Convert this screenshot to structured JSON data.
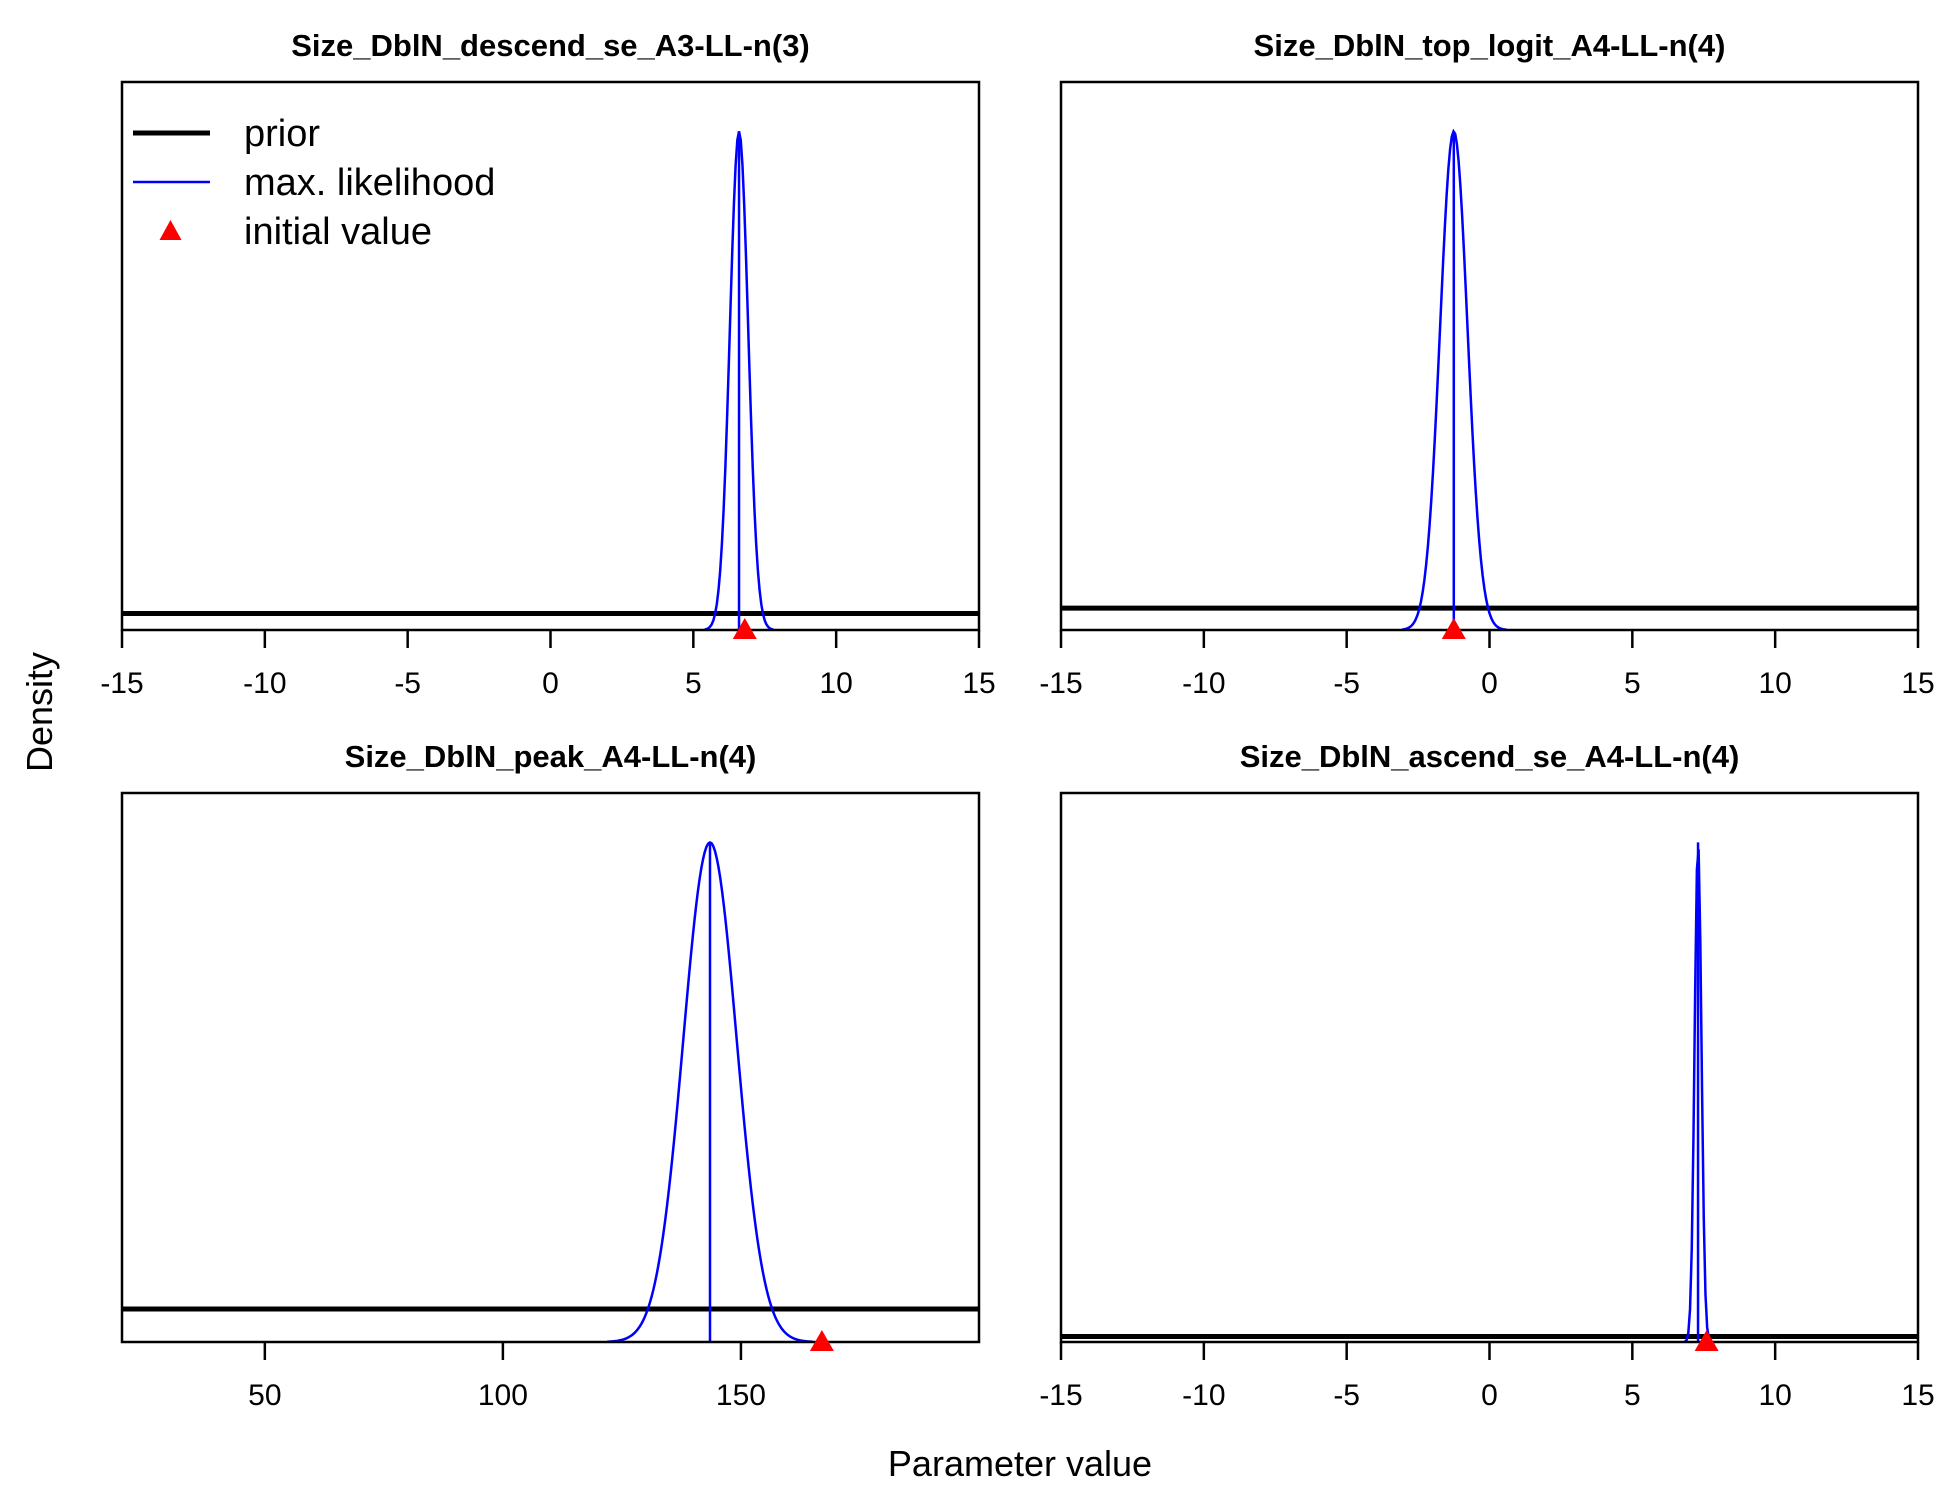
{
  "xlabel": "Parameter value",
  "ylabel": "Density",
  "legend": {
    "placement": "top-left",
    "items": [
      {
        "label": "prior",
        "color": "#000000",
        "style": "line-thick"
      },
      {
        "label": "max. likelihood",
        "color": "#0000ff",
        "style": "line-thin"
      },
      {
        "label": "initial value",
        "color": "#ff0000",
        "style": "triangle"
      }
    ]
  },
  "colors": {
    "prior": "#000000",
    "mle": "#0000ff",
    "initial": "#ff0000"
  },
  "chart_data": [
    {
      "type": "line",
      "title": "Size_DblN_descend_se_A3-LL-n(3)",
      "xlim": [
        -15,
        15
      ],
      "xticks": [
        "-15",
        "-10",
        "-5",
        "0",
        "5",
        "10",
        "15"
      ],
      "prior_level": 0.03,
      "mle": {
        "mean": 6.6,
        "sd": 0.32,
        "peak": 0.91
      },
      "initial_value": 6.8
    },
    {
      "type": "line",
      "title": "Size_DblN_top_logit_A4-LL-n(4)",
      "xlim": [
        -15,
        15
      ],
      "xticks": [
        "-15",
        "-10",
        "-5",
        "0",
        "5",
        "10",
        "15"
      ],
      "prior_level": 0.04,
      "mle": {
        "mean": -1.25,
        "sd": 0.48,
        "peak": 0.91
      },
      "initial_value": -1.25
    },
    {
      "type": "line",
      "title": "Size_DblN_peak_A4-LL-n(4)",
      "xlim": [
        20,
        200
      ],
      "xticks": [
        "50",
        "100",
        "150"
      ],
      "prior_level": 0.06,
      "mle": {
        "mean": 143.5,
        "sd": 5.6,
        "peak": 0.91
      },
      "initial_value": 167
    },
    {
      "type": "line",
      "title": "Size_DblN_ascend_se_A4-LL-n(4)",
      "xlim": [
        -15,
        15
      ],
      "xticks": [
        "-15",
        "-10",
        "-5",
        "0",
        "5",
        "10",
        "15"
      ],
      "prior_level": 0.01,
      "mle": {
        "mean": 7.3,
        "sd": 0.12,
        "peak": 0.91
      },
      "initial_value": 7.6
    }
  ]
}
